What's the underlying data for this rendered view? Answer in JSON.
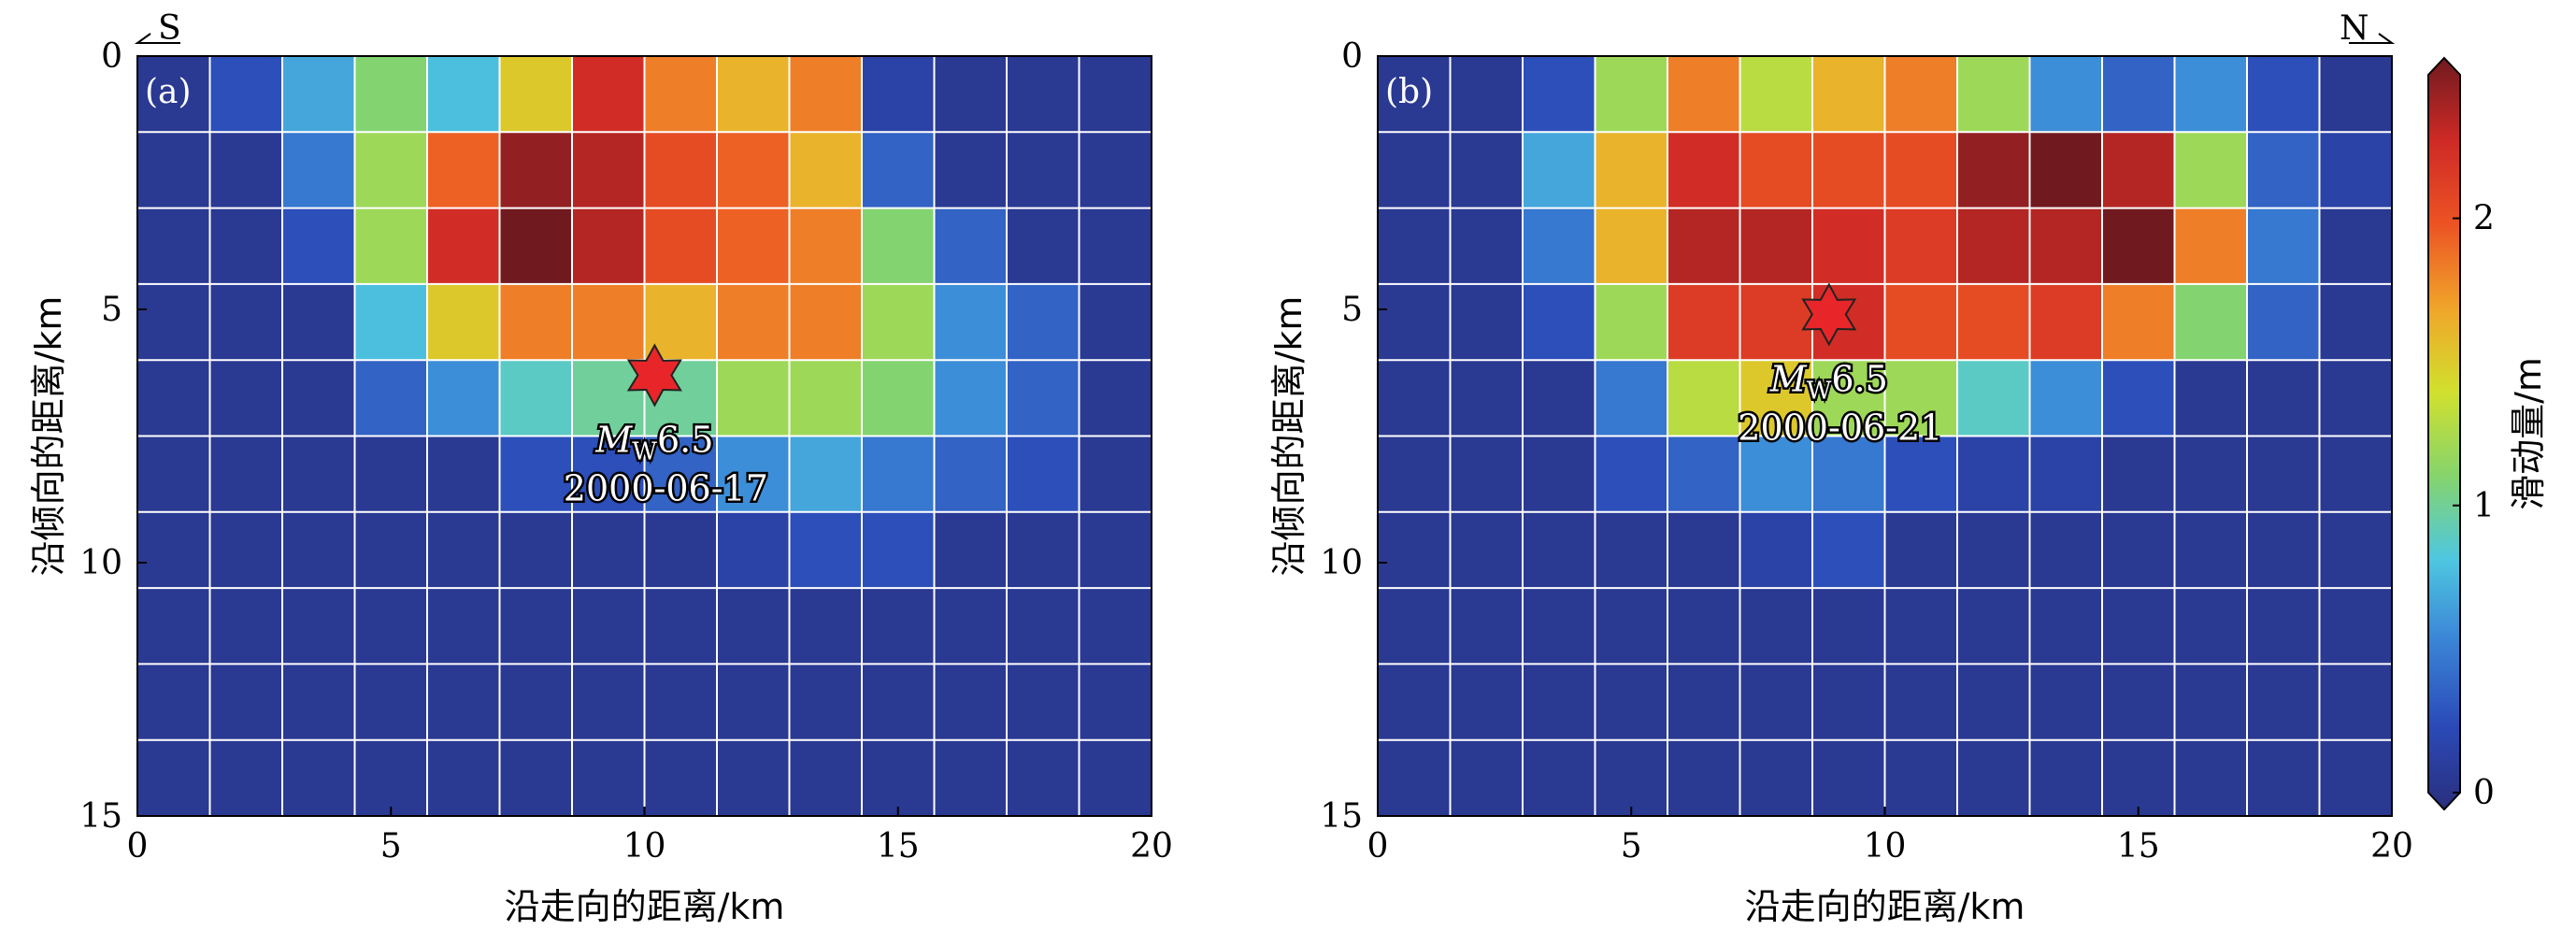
{
  "chart_data": [
    {
      "type": "heatmap",
      "panel_label": "(a)",
      "direction_label": "S",
      "xlabel": "沿走向的距离/km",
      "ylabel": "沿倾向的距离/km",
      "xlim": [
        0,
        20
      ],
      "ylim": [
        0,
        15
      ],
      "y_inverted": true,
      "xticks": [
        "0",
        "5",
        "10",
        "15",
        "20"
      ],
      "yticks": [
        "0",
        "5",
        "10",
        "15"
      ],
      "x_cells": 14,
      "y_cells": 10,
      "grid": true,
      "slip": [
        [
          0.1,
          0.3,
          0.7,
          1.1,
          0.8,
          1.5,
          2.2,
          1.8,
          1.6,
          1.8,
          0.2,
          0.1,
          0.1,
          0.1
        ],
        [
          0.1,
          0.1,
          0.5,
          1.2,
          1.9,
          2.4,
          2.3,
          2.0,
          1.9,
          1.6,
          0.4,
          0.1,
          0.1,
          0.1
        ],
        [
          0.1,
          0.1,
          0.3,
          1.2,
          2.2,
          2.5,
          2.3,
          2.0,
          1.9,
          1.8,
          1.1,
          0.4,
          0.1,
          0.1
        ],
        [
          0.1,
          0.1,
          0.1,
          0.8,
          1.5,
          1.8,
          1.8,
          1.6,
          1.8,
          1.8,
          1.2,
          0.6,
          0.4,
          0.1
        ],
        [
          0.1,
          0.1,
          0.1,
          0.4,
          0.6,
          0.9,
          1.0,
          1.0,
          1.2,
          1.2,
          1.1,
          0.6,
          0.4,
          0.1
        ],
        [
          0.1,
          0.1,
          0.1,
          0.1,
          0.1,
          0.3,
          0.3,
          0.4,
          0.6,
          0.7,
          0.5,
          0.4,
          0.3,
          0.1
        ],
        [
          0.1,
          0.1,
          0.1,
          0.1,
          0.1,
          0.1,
          0.1,
          0.1,
          0.2,
          0.3,
          0.3,
          0.1,
          0.1,
          0.1
        ],
        [
          0.1,
          0.1,
          0.1,
          0.1,
          0.1,
          0.1,
          0.1,
          0.1,
          0.1,
          0.1,
          0.1,
          0.1,
          0.1,
          0.1
        ],
        [
          0.1,
          0.1,
          0.1,
          0.1,
          0.1,
          0.1,
          0.1,
          0.1,
          0.1,
          0.1,
          0.1,
          0.1,
          0.1,
          0.1
        ],
        [
          0.1,
          0.1,
          0.1,
          0.1,
          0.1,
          0.1,
          0.1,
          0.1,
          0.1,
          0.1,
          0.1,
          0.1,
          0.1,
          0.1
        ]
      ],
      "hypocenter": {
        "x": 10.2,
        "y": 6.3,
        "magnitude": "6.5",
        "date": "2000-06-17"
      }
    },
    {
      "type": "heatmap",
      "panel_label": "(b)",
      "direction_label": "N",
      "xlabel": "沿走向的距离/km",
      "ylabel": "沿倾向的距离/km",
      "xlim": [
        0,
        20
      ],
      "ylim": [
        0,
        15
      ],
      "y_inverted": true,
      "xticks": [
        "0",
        "5",
        "10",
        "15",
        "20"
      ],
      "yticks": [
        "0",
        "5",
        "10",
        "15"
      ],
      "x_cells": 14,
      "y_cells": 10,
      "grid": true,
      "slip": [
        [
          0.1,
          0.1,
          0.3,
          1.2,
          1.8,
          1.3,
          1.6,
          1.8,
          1.2,
          0.6,
          0.4,
          0.6,
          0.3,
          0.1
        ],
        [
          0.1,
          0.1,
          0.7,
          1.6,
          2.2,
          2.0,
          2.0,
          2.0,
          2.4,
          2.5,
          2.3,
          1.2,
          0.4,
          0.2
        ],
        [
          0.1,
          0.1,
          0.5,
          1.6,
          2.3,
          2.3,
          2.2,
          2.1,
          2.3,
          2.3,
          2.5,
          1.8,
          0.5,
          0.1
        ],
        [
          0.1,
          0.1,
          0.3,
          1.2,
          2.1,
          2.1,
          2.2,
          2.0,
          2.0,
          2.1,
          1.8,
          1.1,
          0.4,
          0.1
        ],
        [
          0.1,
          0.1,
          0.1,
          0.5,
          1.3,
          1.5,
          1.2,
          1.2,
          0.9,
          0.6,
          0.3,
          0.1,
          0.1,
          0.1
        ],
        [
          0.1,
          0.1,
          0.1,
          0.3,
          0.4,
          0.6,
          0.5,
          0.3,
          0.2,
          0.2,
          0.1,
          0.1,
          0.1,
          0.1
        ],
        [
          0.1,
          0.1,
          0.1,
          0.1,
          0.1,
          0.2,
          0.3,
          0.1,
          0.1,
          0.1,
          0.1,
          0.1,
          0.1,
          0.1
        ],
        [
          0.1,
          0.1,
          0.1,
          0.1,
          0.1,
          0.1,
          0.1,
          0.1,
          0.1,
          0.1,
          0.1,
          0.1,
          0.1,
          0.1
        ],
        [
          0.1,
          0.1,
          0.1,
          0.1,
          0.1,
          0.1,
          0.1,
          0.1,
          0.1,
          0.1,
          0.1,
          0.1,
          0.1,
          0.1
        ],
        [
          0.1,
          0.1,
          0.1,
          0.1,
          0.1,
          0.1,
          0.1,
          0.1,
          0.1,
          0.1,
          0.1,
          0.1,
          0.1,
          0.1
        ]
      ],
      "hypocenter": {
        "x": 8.9,
        "y": 5.1,
        "magnitude": "6.5",
        "date": "2000-06-21"
      }
    }
  ],
  "magnitude_symbol": "M",
  "magnitude_subscript": "W",
  "colorbar": {
    "label": "滑动量/m",
    "min": 0,
    "max": 2.5,
    "ticks": [
      "0",
      "1",
      "2"
    ],
    "tick_values": [
      0,
      1,
      2
    ],
    "colormap": [
      "#2a2f7d",
      "#2b4ab8",
      "#3a83d6",
      "#4ec7e0",
      "#86d46c",
      "#d1e02e",
      "#f0a52a",
      "#ec5424",
      "#cf2a26",
      "#701a1f"
    ]
  }
}
